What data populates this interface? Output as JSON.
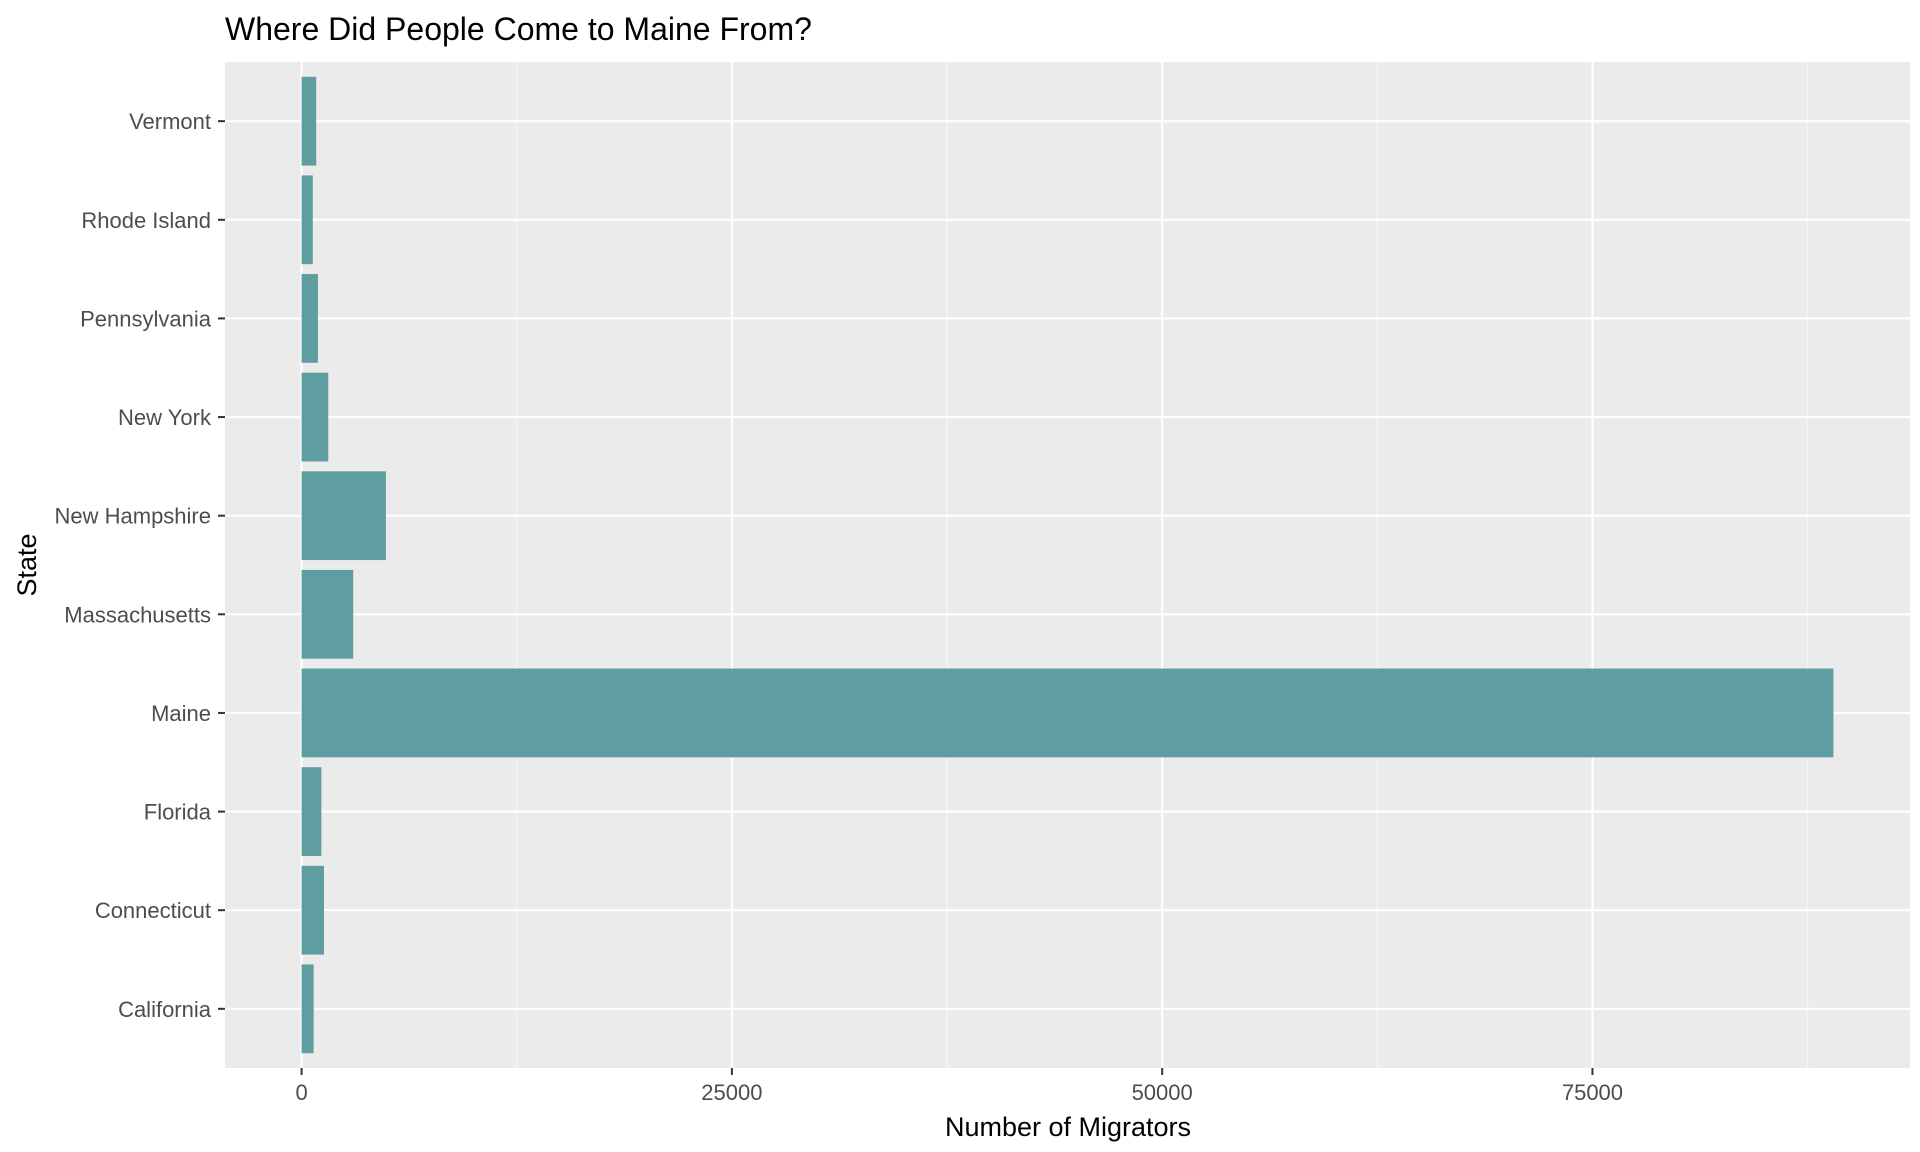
{
  "chart_data": {
    "type": "bar",
    "orientation": "horizontal",
    "title": "Where Did People Come to Maine From?",
    "xlabel": "Number of Migrators",
    "ylabel": "State",
    "categories": [
      "California",
      "Connecticut",
      "Florida",
      "Maine",
      "Massachusetts",
      "New Hampshire",
      "New York",
      "Pennsylvania",
      "Rhode Island",
      "Vermont"
    ],
    "values": [
      700,
      1300,
      1150,
      89000,
      3000,
      4900,
      1550,
      950,
      650,
      850
    ],
    "xlim": [
      -4450,
      93450
    ],
    "xticks": [
      0,
      25000,
      50000,
      75000
    ],
    "xtick_labels": [
      "0",
      "25000",
      "50000",
      "75000"
    ],
    "grid": true,
    "legend": "none",
    "colors": {
      "bar": "#5f9ea0",
      "panel": "#ebebeb",
      "grid_major": "#ffffff",
      "grid_minor": "#f5f5f5",
      "tick_text": "#4d4d4d",
      "tick_mark": "#333333"
    }
  }
}
